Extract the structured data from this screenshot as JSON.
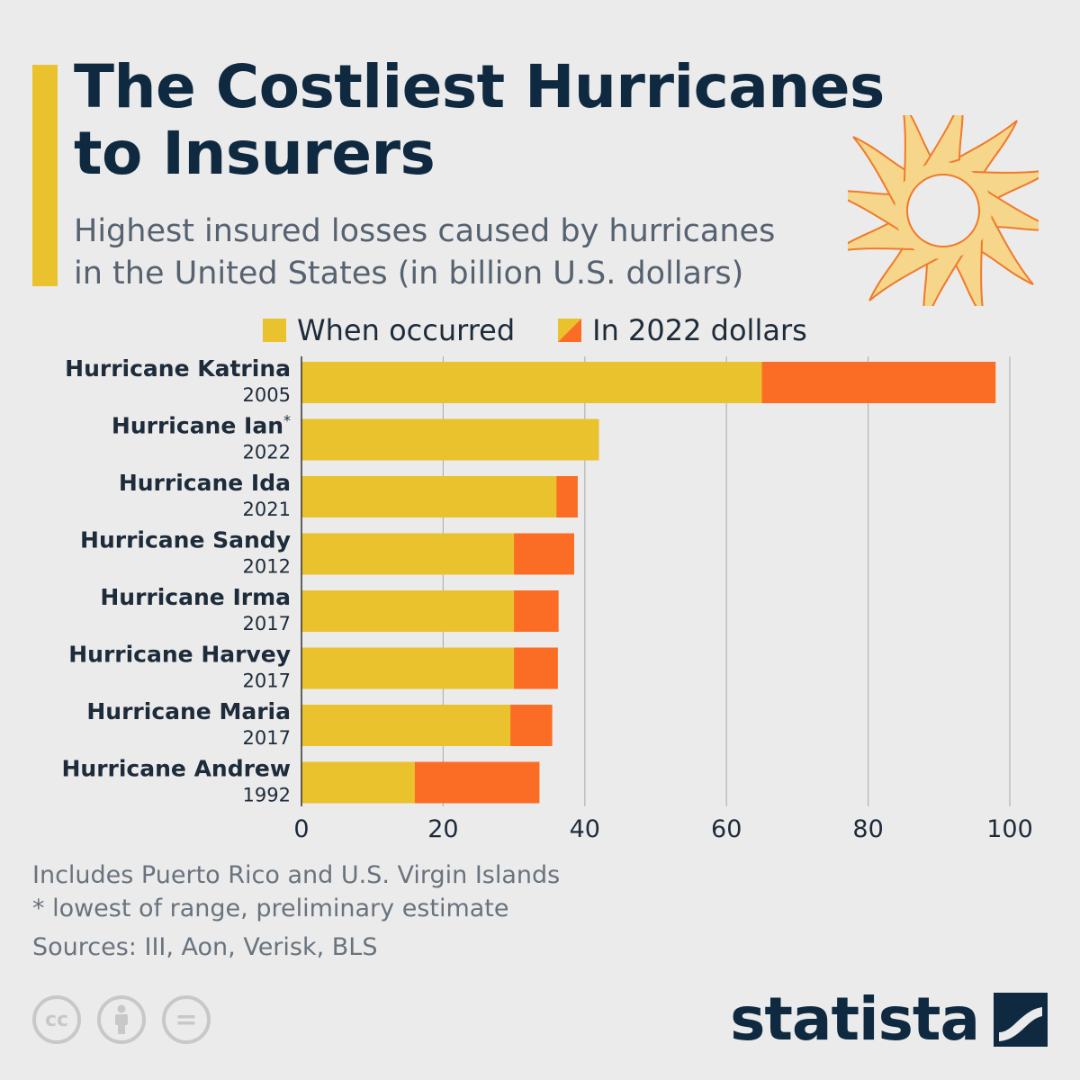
{
  "header": {
    "title_line1": "The Costliest Hurricanes",
    "title_line2": "to Insurers",
    "subtitle_line1": "Highest insured losses caused by hurricanes",
    "subtitle_line2": "in the United States (in billion U.S. dollars)"
  },
  "legend": {
    "when_occurred": "When occurred",
    "in_2022": "In 2022 dollars"
  },
  "colors": {
    "accent": "#e9c22d",
    "when_occurred": "#e9c22d",
    "in_2022": "#fb6d24",
    "title": "#0f2a40",
    "grid": "#b4b4b4"
  },
  "chart_data": {
    "type": "bar",
    "orientation": "horizontal",
    "stacked": "overlay",
    "categories": [
      {
        "name": "Hurricane Katrina",
        "year": "2005"
      },
      {
        "name": "Hurricane Ian",
        "year": "2022",
        "marker": "*"
      },
      {
        "name": "Hurricane Ida",
        "year": "2021"
      },
      {
        "name": "Hurricane Sandy",
        "year": "2012"
      },
      {
        "name": "Hurricane Irma",
        "year": "2017"
      },
      {
        "name": "Hurricane Harvey",
        "year": "2017"
      },
      {
        "name": "Hurricane Maria",
        "year": "2017"
      },
      {
        "name": "Hurricane Andrew",
        "year": "1992"
      }
    ],
    "series": [
      {
        "name": "When occurred",
        "values": [
          65,
          42,
          36,
          30,
          30,
          30,
          29.5,
          16
        ]
      },
      {
        "name": "In 2022 dollars",
        "values": [
          98,
          42,
          39,
          38.5,
          36.3,
          36.2,
          35.4,
          33.6
        ]
      }
    ],
    "xlim": [
      0,
      100
    ],
    "xticks": [
      0,
      20,
      40,
      60,
      80,
      100
    ],
    "grid": true,
    "legend_position": "top"
  },
  "footnotes": {
    "line1": "Includes Puerto Rico and U.S. Virgin Islands",
    "line2": "* lowest of range, preliminary estimate",
    "sources": "Sources: III, Aon, Verisk, BLS"
  },
  "brand": {
    "name": "statista",
    "cc_icons": [
      "cc-icon",
      "attribution-icon",
      "no-derivatives-icon"
    ],
    "cc_label": "cc",
    "nd_label": "="
  }
}
